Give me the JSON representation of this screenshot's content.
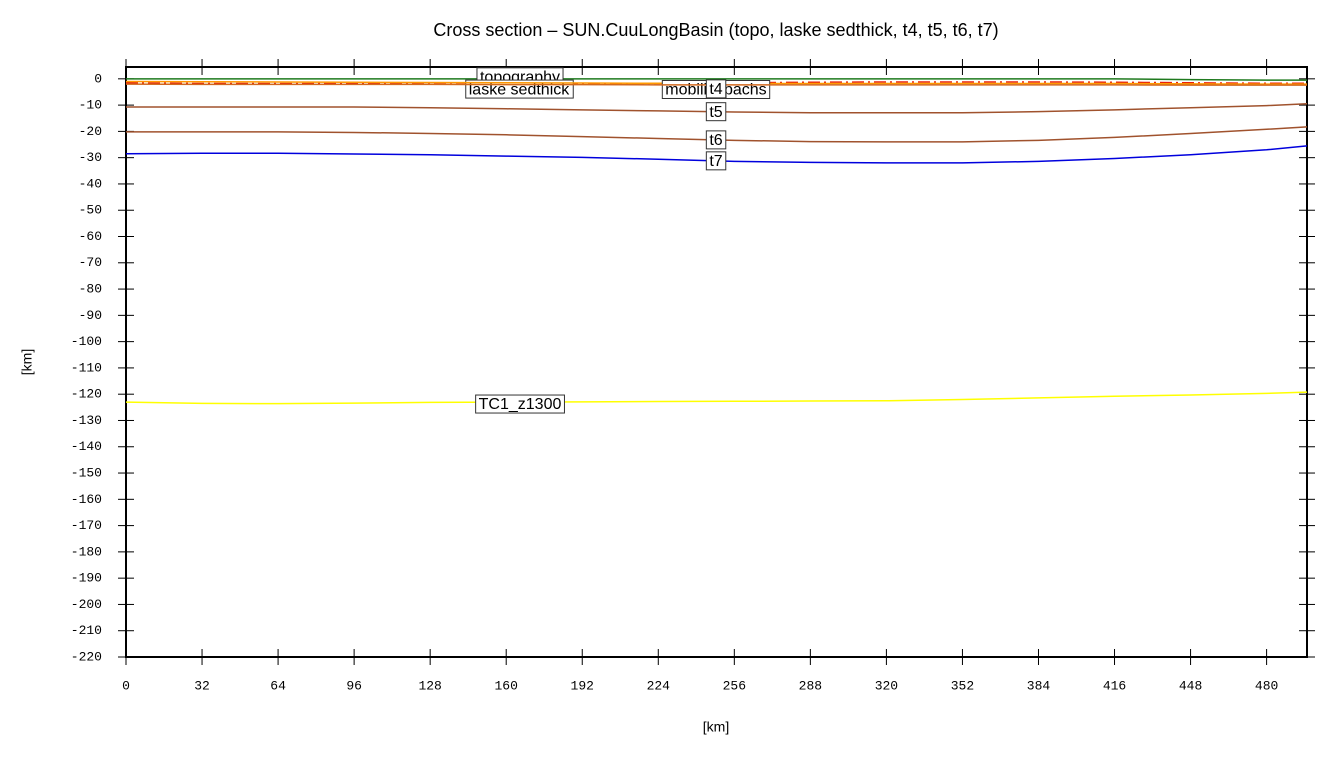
{
  "chart_data": {
    "type": "line",
    "title": "Cross section – SUN.CuuLongBasin (topo, laske sedthick, t4, t5, t6, t7)",
    "x_label": "[km]",
    "y_label": "[km]",
    "x": [
      0,
      32,
      64,
      96,
      128,
      160,
      192,
      224,
      256,
      288,
      320,
      352,
      384,
      416,
      448,
      480,
      497
    ],
    "series": [
      {
        "name": "topography",
        "color": "#1f7a1f",
        "values": [
          0,
          0,
          0,
          0,
          0,
          0,
          0,
          0,
          0,
          0,
          0,
          0,
          0,
          0,
          -0.3,
          -0.5,
          -0.5
        ]
      },
      {
        "name": "laske sedthick",
        "color": "#e8200c",
        "dash": true,
        "values": [
          -1.5,
          -1.8,
          -1.8,
          -1.7,
          -1.6,
          -1.6,
          -1.7,
          -1.8,
          -1.5,
          -1.3,
          -1.2,
          -1.2,
          -1.2,
          -1.3,
          -1.5,
          -1.7,
          -1.7
        ]
      },
      {
        "name": "mobilisepachs",
        "color": "#ff9900",
        "values": [
          -1.0,
          -1.1,
          -1.2,
          -1.3,
          -1.4,
          -1.5,
          -1.6,
          -1.7,
          -1.8,
          -1.8,
          -1.8,
          -1.8,
          -1.8,
          -1.8,
          -1.9,
          -2.0,
          -2.0
        ]
      },
      {
        "name": "t4",
        "color": "#d2691e",
        "values": [
          -2.0,
          -2.1,
          -2.1,
          -2.1,
          -2.1,
          -2.2,
          -2.2,
          -2.3,
          -2.3,
          -2.3,
          -2.3,
          -2.3,
          -2.3,
          -2.3,
          -2.4,
          -2.4,
          -2.4
        ]
      },
      {
        "name": "t5",
        "color": "#a0522d",
        "values": [
          -10.7,
          -10.7,
          -10.7,
          -10.7,
          -11.0,
          -11.4,
          -11.8,
          -12.2,
          -12.6,
          -12.9,
          -12.9,
          -12.9,
          -12.5,
          -11.8,
          -11.0,
          -10.2,
          -9.5
        ]
      },
      {
        "name": "t6",
        "color": "#a0522d",
        "values": [
          -20.2,
          -20.2,
          -20.2,
          -20.4,
          -20.8,
          -21.3,
          -22.0,
          -22.7,
          -23.4,
          -23.9,
          -24.0,
          -24.0,
          -23.4,
          -22.3,
          -20.8,
          -19.2,
          -18.3
        ]
      },
      {
        "name": "t7",
        "color": "#0000dd",
        "values": [
          -28.5,
          -28.3,
          -28.3,
          -28.6,
          -28.9,
          -29.4,
          -29.9,
          -30.6,
          -31.4,
          -31.8,
          -32.0,
          -32.0,
          -31.4,
          -30.3,
          -28.9,
          -27.0,
          -25.5
        ]
      },
      {
        "name": "TC1_z1300",
        "color": "#ffff00",
        "values": [
          -123.0,
          -123.5,
          -123.6,
          -123.4,
          -123.1,
          -123.0,
          -122.9,
          -122.8,
          -122.7,
          -122.6,
          -122.5,
          -122.0,
          -121.4,
          -120.8,
          -120.3,
          -119.7,
          -119.2
        ]
      }
    ],
    "xlim": [
      0,
      497
    ],
    "ylim": [
      -220,
      4.5
    ],
    "xticks": [
      0,
      32,
      64,
      96,
      128,
      160,
      192,
      224,
      256,
      288,
      320,
      352,
      384,
      416,
      448,
      480
    ],
    "yticks": [
      0,
      -10,
      -20,
      -30,
      -40,
      -50,
      -60,
      -70,
      -80,
      -90,
      -100,
      -110,
      -120,
      -130,
      -140,
      -150,
      -160,
      -170,
      -180,
      -190,
      -200,
      -210,
      -220
    ]
  }
}
